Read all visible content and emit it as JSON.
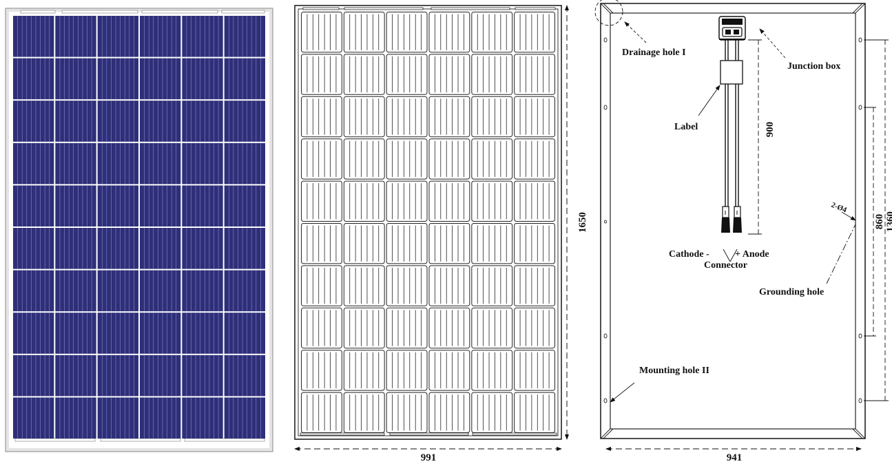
{
  "front_panel": {
    "rows": 10,
    "columns": 6,
    "cell_color": "#2e2f78",
    "frame_color": "#d6d6d6"
  },
  "outline_panel": {
    "height_dim": "1650",
    "width_dim": "991"
  },
  "back_panel": {
    "labels": {
      "drainage_hole": "Drainage hole I",
      "junction_box": "Junction box",
      "label": "Label",
      "cable_length": "900",
      "cathode": "Cathode -",
      "anode": "+ Anode",
      "connector": "Connector",
      "grounding_hole_spec": "2-Ø4",
      "grounding_hole": "Grounding hole",
      "mounting_hole": "Mounting hole II",
      "dim_860": "860",
      "dim_1360": "1360",
      "width_dim": "941"
    }
  }
}
